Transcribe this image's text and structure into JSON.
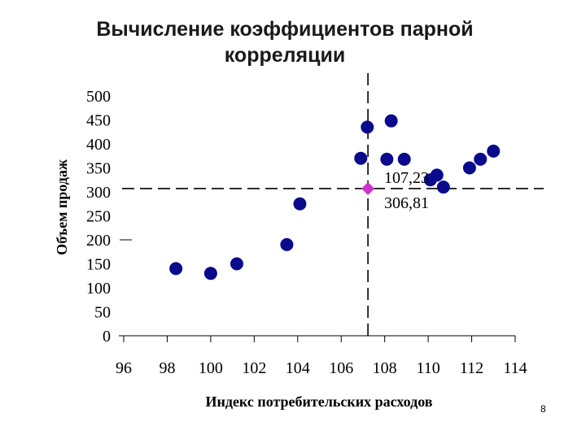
{
  "slide": {
    "title_line1": "Вычисление коэффициентов парной",
    "title_line2": "корреляции",
    "page_number": "8"
  },
  "chart_data": {
    "type": "scatter",
    "xlabel": "Индекс потребительских расходов",
    "ylabel": "Объем продаж",
    "xlim": [
      96,
      114
    ],
    "ylim": [
      0,
      500
    ],
    "x_ticks": [
      "96",
      "98",
      "100",
      "102",
      "104",
      "106",
      "108",
      "110",
      "112",
      "114"
    ],
    "y_ticks": [
      "500",
      "450",
      "400",
      "350",
      "300",
      "250",
      "200",
      "150",
      "100",
      "50",
      "0"
    ],
    "grid": false,
    "point_color": "#0a0a8c",
    "mean_color": "#cc33cc",
    "series": [
      {
        "points": [
          [
            98.4,
            140
          ],
          [
            100,
            130
          ],
          [
            101.2,
            150
          ],
          [
            103.5,
            190
          ],
          [
            104.1,
            275
          ],
          [
            106.9,
            370
          ],
          [
            107.2,
            435
          ],
          [
            108.1,
            368
          ],
          [
            108.3,
            448
          ],
          [
            108.9,
            368
          ],
          [
            110.1,
            325
          ],
          [
            110.4,
            335
          ],
          [
            110.7,
            310
          ],
          [
            111.9,
            350
          ],
          [
            112.4,
            368
          ],
          [
            113,
            385
          ]
        ]
      }
    ],
    "mean_point": {
      "x": 107.23,
      "y": 306.81
    },
    "annotation_x": "107,23",
    "annotation_y": "306,81"
  }
}
